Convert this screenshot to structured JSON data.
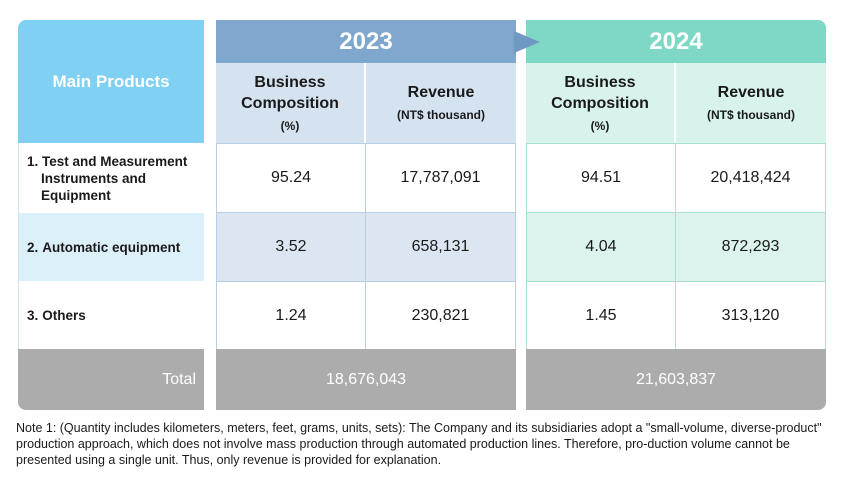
{
  "header": {
    "main_products": "Main Products",
    "year_2023": "2023",
    "year_2024": "2024",
    "col_comp_line1": "Business",
    "col_comp_line2": "Composition",
    "col_comp_unit": "(%)",
    "col_rev_line1": "Revenue",
    "col_rev_unit": "(NT$ thousand)"
  },
  "rows": [
    {
      "num": "1.",
      "product": "Test and Measurement Instruments and Equipment",
      "comp_2023": "95.24",
      "rev_2023": "17,787,091",
      "comp_2024": "94.51",
      "rev_2024": "20,418,424"
    },
    {
      "num": "2.",
      "product": "Automatic equipment",
      "comp_2023": "3.52",
      "rev_2023": "658,131",
      "comp_2024": "4.04",
      "rev_2024": "872,293"
    },
    {
      "num": "3.",
      "product": "Others",
      "comp_2023": "1.24",
      "rev_2023": "230,821",
      "comp_2024": "1.45",
      "rev_2024": "313,120"
    }
  ],
  "total": {
    "label": "Total",
    "value_2023": "18,676,043",
    "value_2024": "21,603,837"
  },
  "note": "Note 1: (Quantity includes kilometers, meters, feet, grams, units, sets): The Company and its subsidiaries adopt a \"small-volume, diverse-product\" production approach, which does not involve mass production through automated production lines. Therefore, pro-duction volume cannot be presented using a single unit. Thus, only revenue is provided for explanation.",
  "colors": {
    "main_header": "#7fd0f3",
    "header_2023": "#7fa6cc",
    "header_2024": "#7fd8c5",
    "total_bg": "#acacac"
  }
}
